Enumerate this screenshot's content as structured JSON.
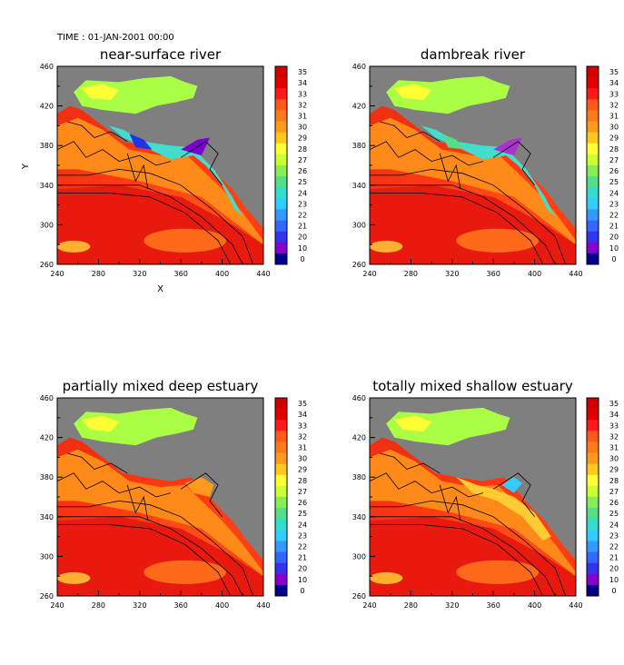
{
  "time_label": "TIME : 01-JAN-2001 00:00",
  "axes": {
    "xlabel": "X",
    "ylabel": "Y",
    "xlim": [
      240,
      440
    ],
    "ylim": [
      260,
      460
    ],
    "xticks": [
      "240",
      "280",
      "320",
      "360",
      "400",
      "440"
    ],
    "yticks": [
      "260",
      "300",
      "340",
      "380",
      "420",
      "460"
    ]
  },
  "colorbar": {
    "labels": [
      "35",
      "34",
      "33",
      "32",
      "31",
      "30",
      "29",
      "28",
      "27",
      "26",
      "25",
      "24",
      "23",
      "22",
      "21",
      "20",
      "10",
      "0"
    ],
    "colors": [
      "#d00000",
      "#e00000",
      "#ff1a1a",
      "#ff5a1a",
      "#ff7a1a",
      "#ff9a1a",
      "#ffc81a",
      "#ffff33",
      "#ccff33",
      "#88ee55",
      "#55dd88",
      "#33ddcc",
      "#33ccff",
      "#3399ff",
      "#3366ff",
      "#3333ee",
      "#8800cc",
      "#000088"
    ]
  },
  "chart_data": [
    {
      "type": "heatmap",
      "title": "near-surface river",
      "xlim": [
        240,
        440
      ],
      "ylim": [
        260,
        460
      ],
      "xlabel": "X",
      "ylabel": "Y",
      "colorbar_range": [
        0,
        35
      ],
      "land_color": "#7f7f7f"
    },
    {
      "type": "heatmap",
      "title": "dambreak river",
      "xlim": [
        240,
        440
      ],
      "ylim": [
        260,
        460
      ],
      "xlabel": "",
      "ylabel": "",
      "colorbar_range": [
        0,
        35
      ],
      "land_color": "#7f7f7f"
    },
    {
      "type": "heatmap",
      "title": "partially mixed deep estuary",
      "xlim": [
        240,
        440
      ],
      "ylim": [
        260,
        460
      ],
      "xlabel": "",
      "ylabel": "",
      "colorbar_range": [
        0,
        35
      ],
      "land_color": "#7f7f7f"
    },
    {
      "type": "heatmap",
      "title": "totally mixed shallow estuary",
      "xlim": [
        240,
        440
      ],
      "ylim": [
        260,
        460
      ],
      "xlabel": "",
      "ylabel": "",
      "colorbar_range": [
        0,
        35
      ],
      "land_color": "#7f7f7f"
    }
  ]
}
